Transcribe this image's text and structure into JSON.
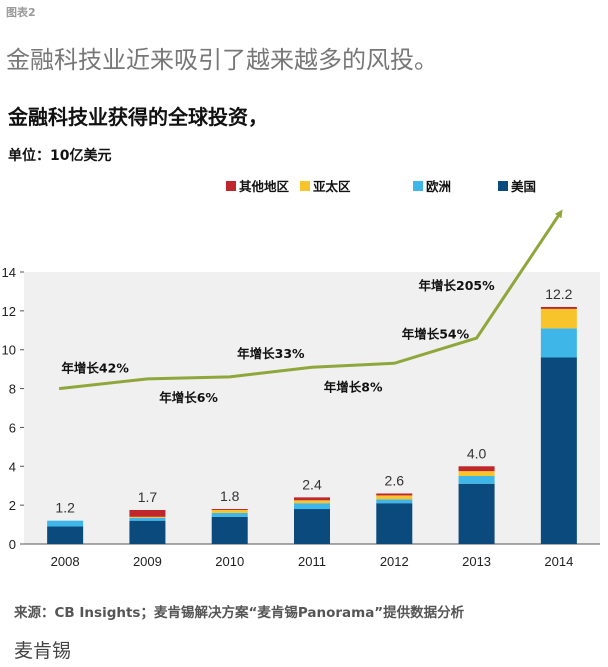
{
  "figure_label": "图表2",
  "headline": "金融科技业近来吸引了越来越多的风投。",
  "brand": "麦肯锡",
  "source": "来源：CB Insights；麦肯锡解决方案“麦肯锡Panorama”提供数据分析",
  "colors": {
    "other": "#c0272d",
    "apac": "#f7c52b",
    "europe": "#3fb6e8",
    "us": "#0b4a7d",
    "growth": "#8fa73a",
    "plot_bg": "#f0f0f0"
  },
  "chart_data": {
    "type": "bar",
    "stacked": true,
    "title": "金融科技业获得的全球投资，",
    "unit_label": "单位：10亿美元",
    "categories": [
      "2008",
      "2009",
      "2010",
      "2011",
      "2012",
      "2013",
      "2014"
    ],
    "series": [
      {
        "name": "美国",
        "key": "us",
        "values": [
          0.9,
          1.2,
          1.4,
          1.8,
          2.1,
          3.1,
          9.6
        ]
      },
      {
        "name": "欧洲",
        "key": "europe",
        "values": [
          0.3,
          0.15,
          0.2,
          0.3,
          0.2,
          0.4,
          1.5
        ]
      },
      {
        "name": "亚太区",
        "key": "apac",
        "values": [
          0.0,
          0.05,
          0.15,
          0.15,
          0.2,
          0.25,
          1.0
        ]
      },
      {
        "name": "其他地区",
        "key": "other",
        "values": [
          0.0,
          0.35,
          0.05,
          0.15,
          0.1,
          0.25,
          0.1
        ]
      }
    ],
    "totals": [
      "1.2",
      "1.7",
      "1.8",
      "2.4",
      "2.6",
      "4.0",
      "12.2"
    ],
    "legend_order": [
      "其他地区",
      "亚太区",
      "欧洲",
      "美国"
    ],
    "ylim": [
      0,
      14
    ],
    "yticks": [
      0,
      2,
      4,
      6,
      8,
      10,
      12,
      14
    ],
    "grid": false,
    "growth_line": {
      "points": [
        8.0,
        8.5,
        8.6,
        9.1,
        9.3,
        10.6,
        18.0
      ],
      "labels": [
        "年增长42%",
        "年增长6%",
        "年增长33%",
        "年增长8%",
        "年增长54%",
        "年增长205%"
      ]
    }
  }
}
